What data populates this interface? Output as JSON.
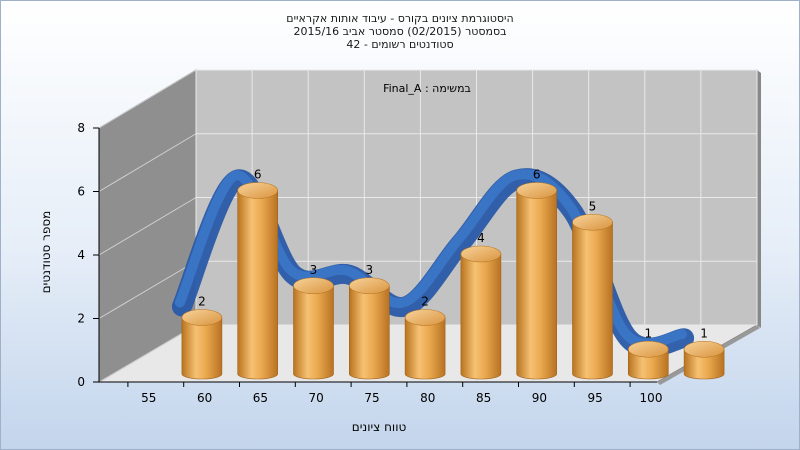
{
  "chart_data": {
    "type": "bar",
    "title_lines": [
      "היסטוגרמת ציונים בקורס - עיבוד אותות אקראיים",
      "בסמסטר  (02/2015)  סמסטר אביב 2015/16",
      "סטודנטים רשומים - 42"
    ],
    "annotation": "Final_A : במשימה",
    "categories": [
      "55",
      "60",
      "65",
      "70",
      "75",
      "80",
      "85",
      "90",
      "95",
      "100"
    ],
    "values": [
      2,
      6,
      3,
      3,
      2,
      4,
      6,
      5,
      1,
      1
    ],
    "series": [
      {
        "name": "",
        "values": [
          2,
          6,
          3,
          3,
          2,
          4,
          6,
          5,
          1,
          1
        ]
      }
    ],
    "xlabel": "טווח ציונים",
    "ylabel": "מספר סטודנטים",
    "ylim": [
      0,
      8
    ],
    "yticks": [
      0,
      2,
      4,
      6,
      8
    ],
    "grid": true,
    "style": {
      "bar_color": "#e3a24a",
      "curve_color": "#3a74c4",
      "back_wall": "#c3c3c3",
      "side_wall": "#8f8f8f"
    }
  }
}
